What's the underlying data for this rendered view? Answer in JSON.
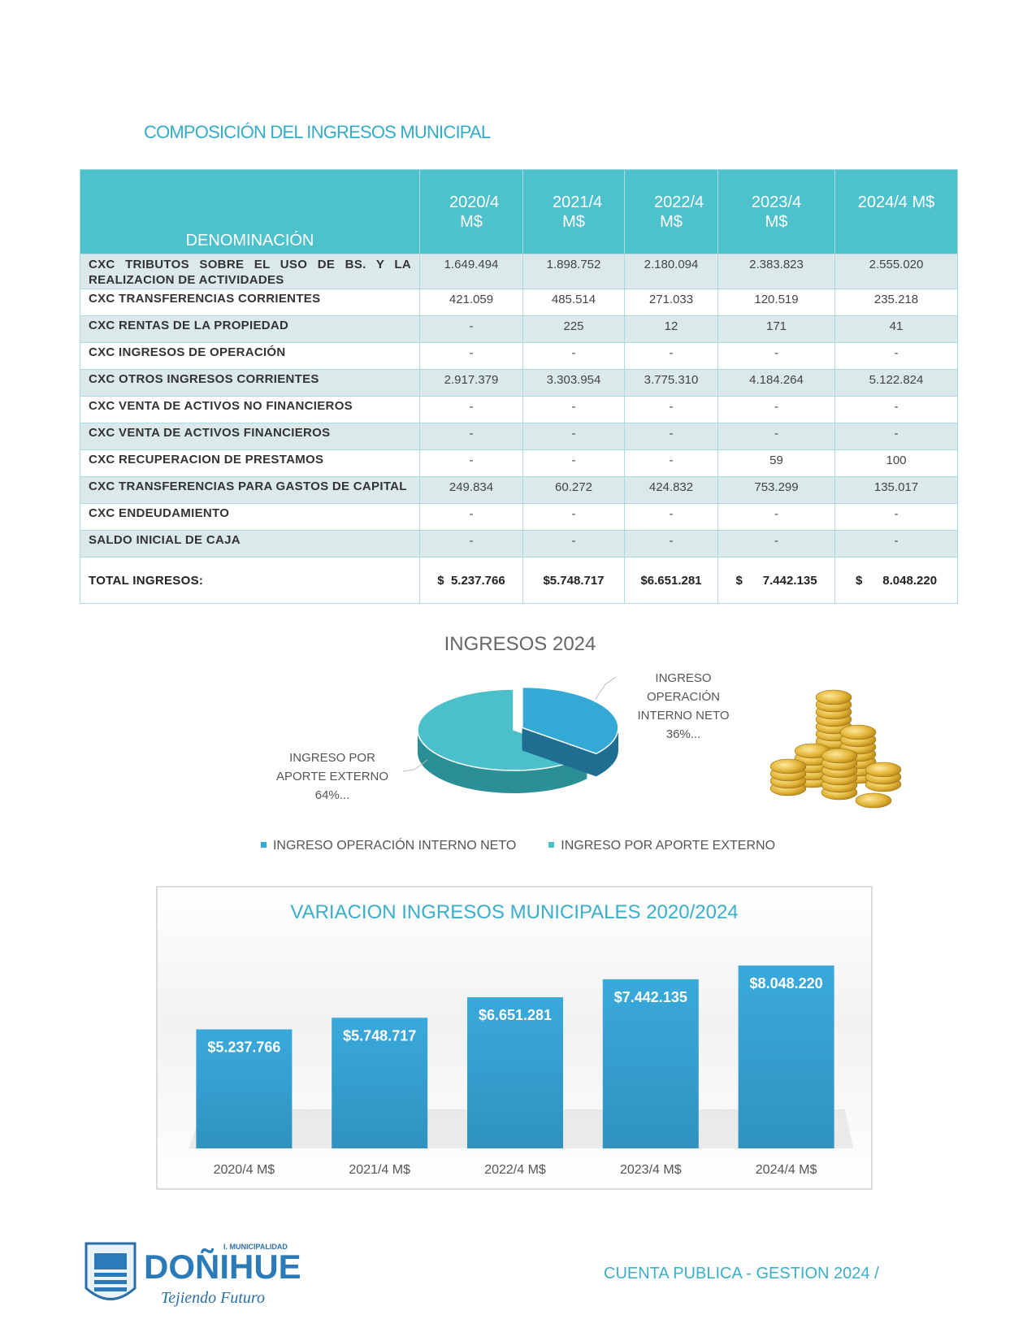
{
  "title": "COMPOSICIÓN DEL INGRESOS MUNICIPAL",
  "table": {
    "header": [
      "DENOMINACIÓN",
      "2020/4 M$",
      "2021/4 M$",
      "2022/4 M$",
      "2023/4 M$",
      "2024/4 M$"
    ],
    "rows": [
      [
        "CXC TRIBUTOS SOBRE EL USO DE BS. Y LA REALIZACION DE ACTIVIDADES",
        "1.649.494",
        "1.898.752",
        "2.180.094",
        "2.383.823",
        "2.555.020"
      ],
      [
        "CXC TRANSFERENCIAS CORRIENTES",
        "421.059",
        "485.514",
        "271.033",
        "120.519",
        "235.218"
      ],
      [
        "CXC RENTAS DE LA PROPIEDAD",
        "-",
        "225",
        "12",
        "171",
        "41"
      ],
      [
        "CXC INGRESOS DE OPERACIÓN",
        "-",
        "-",
        "-",
        "-",
        "-"
      ],
      [
        "CXC OTROS INGRESOS CORRIENTES",
        "2.917.379",
        "3.303.954",
        "3.775.310",
        "4.184.264",
        "5.122.824"
      ],
      [
        "CXC VENTA DE ACTIVOS NO FINANCIEROS",
        "-",
        "-",
        "-",
        "-",
        "-"
      ],
      [
        "CXC VENTA DE ACTIVOS FINANCIEROS",
        "-",
        "-",
        "-",
        "-",
        "-"
      ],
      [
        "CXC RECUPERACION DE PRESTAMOS",
        "-",
        "-",
        "-",
        "59",
        "100"
      ],
      [
        "CXC TRANSFERENCIAS PARA GASTOS DE CAPITAL",
        "249.834",
        "60.272",
        "424.832",
        "753.299",
        "135.017"
      ],
      [
        "CXC ENDEUDAMIENTO",
        "-",
        "-",
        "-",
        "-",
        "-"
      ],
      [
        "SALDO INICIAL DE CAJA",
        "-",
        "-",
        "-",
        "-",
        "-"
      ]
    ],
    "total": [
      "TOTAL INGRESOS:",
      "$  5.237.766",
      "$5.748.717",
      "$6.651.281",
      "$      7.442.135",
      "$      8.048.220"
    ]
  },
  "chart_data": [
    {
      "type": "pie",
      "title": "INGRESOS 2024",
      "categories": [
        "INGRESO OPERACIÓN INTERNO NETO",
        "INGRESO POR APORTE EXTERNO"
      ],
      "values": [
        36,
        64
      ],
      "value_labels": [
        "36%...",
        "64%..."
      ],
      "colors": [
        "#35a9d6",
        "#4cc0ca"
      ],
      "legend": "bottom"
    },
    {
      "type": "bar",
      "title": "VARIACION INGRESOS MUNICIPALES 2020/2024",
      "categories": [
        "2020/4 M$",
        "2021/4 M$",
        "2022/4 M$",
        "2023/4 M$",
        "2024/4 M$"
      ],
      "values": [
        5237766,
        5748717,
        6651281,
        7442135,
        8048220
      ],
      "value_labels": [
        "$5.237.766",
        "$5.748.717",
        "$6.651.281",
        "$7.442.135",
        "$8.048.220"
      ],
      "color": "#35a2d4"
    }
  ],
  "footer": {
    "logo_top": "I. MUNICIPALIDAD",
    "logo_name": "DOÑIHUE",
    "logo_slogan": "Tejiendo Futuro",
    "text": "CUENTA PUBLICA - GESTION 2024 /"
  }
}
